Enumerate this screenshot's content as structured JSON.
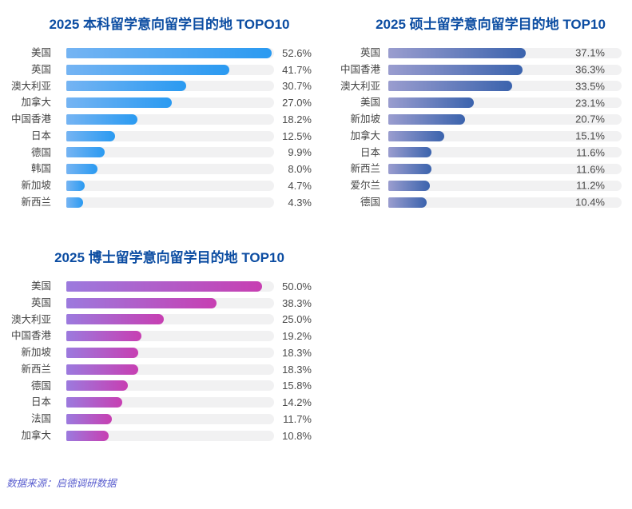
{
  "page": {
    "background": "#ffffff"
  },
  "colors": {
    "title": "#0c4da2",
    "category_label": "#454545",
    "value_label": "#4a4a4a",
    "footer": "#5a5ecf"
  },
  "footer": {
    "text": "数据来源：启德调研数据"
  },
  "chart_data": [
    {
      "type": "bar",
      "orientation": "horizontal",
      "title": "2025 本科留学意向留学目的地 TOPO10",
      "unit": "%",
      "axis_max": 53.2,
      "grid": false,
      "legend": "none",
      "value_label_position": "outside",
      "colors": {
        "gradient_start": "#75b4f3",
        "gradient_end": "#2a9af1",
        "track": "#f1f1f2"
      },
      "categories": [
        "美国",
        "英国",
        "澳大利亚",
        "加拿大",
        "中国香港",
        "日本",
        "德国",
        "韩国",
        "新加坡",
        "新西兰"
      ],
      "values": [
        52.6,
        41.7,
        30.7,
        27.0,
        18.2,
        12.5,
        9.9,
        8.0,
        4.7,
        4.3
      ]
    },
    {
      "type": "bar",
      "orientation": "horizontal",
      "title": "2025 硕士留学意向留学目的地 TOP10",
      "unit": "%",
      "axis_max": 63.0,
      "grid": false,
      "legend": "none",
      "value_label_position": "inside",
      "colors": {
        "gradient_start": "#9a9dcf",
        "gradient_end": "#3b63ad",
        "track": "#f1f1f2"
      },
      "categories": [
        "英国",
        "中国香港",
        "澳大利亚",
        "美国",
        "新加坡",
        "加拿大",
        "日本",
        "新西兰",
        "爱尔兰",
        "德国"
      ],
      "values": [
        37.1,
        36.3,
        33.5,
        23.1,
        20.7,
        15.1,
        11.6,
        11.6,
        11.2,
        10.4
      ]
    },
    {
      "type": "bar",
      "orientation": "horizontal",
      "title": "2025 博士留学意向留学目的地 TOP10",
      "unit": "%",
      "axis_max": 53.1,
      "grid": false,
      "legend": "none",
      "value_label_position": "outside",
      "colors": {
        "gradient_start": "#9c7ade",
        "gradient_end": "#c73fb2",
        "track": "#f1f1f2"
      },
      "categories": [
        "美国",
        "英国",
        "澳大利亚",
        "中国香港",
        "新加坡",
        "新西兰",
        "德国",
        "日本",
        "法国",
        "加拿大"
      ],
      "values": [
        50.0,
        38.3,
        25.0,
        19.2,
        18.3,
        18.3,
        15.8,
        14.2,
        11.7,
        10.8
      ]
    }
  ]
}
